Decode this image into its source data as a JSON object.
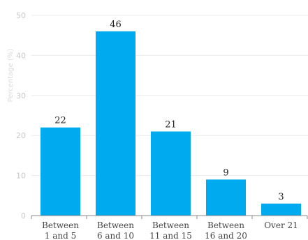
{
  "chart_data": {
    "type": "bar",
    "categories": [
      [
        "Between",
        "1 and 5"
      ],
      [
        "Between",
        "6 and 10"
      ],
      [
        "Between",
        "11 and 15"
      ],
      [
        "Between",
        "16 and 20"
      ],
      [
        "Over 21"
      ]
    ],
    "values": [
      22,
      46,
      21,
      9,
      3
    ],
    "ylabel": "Percentage (%)",
    "ylim": [
      0,
      50
    ],
    "yticks": [
      0,
      10,
      20,
      30,
      40,
      50
    ],
    "grid": true,
    "bar_color": "#00aaee"
  }
}
